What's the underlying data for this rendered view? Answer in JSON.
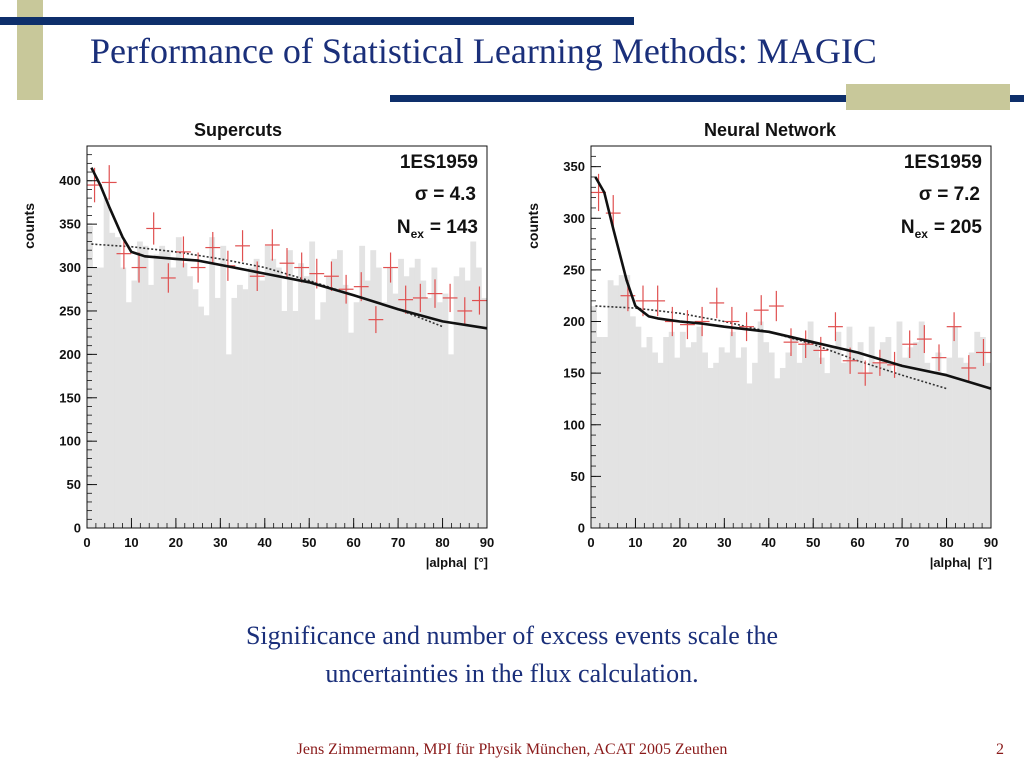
{
  "slide": {
    "title": "Performance of Statistical Learning Methods: MAGIC",
    "caption_line1": "Significance and number of excess events scale the",
    "caption_line2": "uncertainties in the flux calculation.",
    "footer": "Jens Zimmermann, MPI für Physik München, ACAT 2005 Zeuthen",
    "page_number": "2"
  },
  "colors": {
    "title": "#1a2f7a",
    "bar_navy": "#0e2f6b",
    "bar_olive": "#c8c89a",
    "histogram_fill": "#e3e3e3",
    "on_points": "#e05050",
    "fit_line": "#111111",
    "footer": "#8a1a1a"
  },
  "chart_data": [
    {
      "type": "bar",
      "title": "Supercuts",
      "source": "1ES1959",
      "sigma_text": "σ = 4.3",
      "nex_label": "N",
      "nex_sub": "ex",
      "nex_value": "= 143",
      "xlabel": "|alpha|  [°]",
      "ylabel": "counts",
      "xlim": [
        0,
        90
      ],
      "ylim": [
        0,
        440
      ],
      "xticks": [
        "0",
        "10",
        "20",
        "30",
        "40",
        "50",
        "60",
        "70",
        "80",
        "90"
      ],
      "yticks": [
        "0",
        "50",
        "100",
        "150",
        "200",
        "250",
        "300",
        "350",
        "400"
      ],
      "bin_width": 3.33,
      "off_histogram": [
        348,
        300,
        300,
        380,
        340,
        335,
        300,
        260,
        285,
        330,
        325,
        280,
        315,
        325,
        320,
        300,
        335,
        305,
        290,
        275,
        255,
        245,
        335,
        265,
        325,
        200,
        265,
        280,
        275,
        300,
        310,
        285,
        325,
        310,
        300,
        250,
        320,
        250,
        305,
        290,
        330,
        240,
        260,
        290,
        310,
        320,
        280,
        225,
        260,
        325,
        285,
        320,
        300,
        260,
        300,
        270,
        310,
        290,
        300,
        310,
        285,
        265,
        300,
        260,
        270,
        200,
        290,
        300,
        285,
        330,
        300,
        265
      ],
      "on_points": {
        "x": [
          1.7,
          5,
          8.3,
          11.7,
          15,
          18.3,
          21.7,
          25,
          28.3,
          31.7,
          35,
          38.3,
          41.7,
          45,
          48.3,
          51.7,
          55,
          58.3,
          61.7,
          65,
          68.3,
          71.7,
          75,
          78.3,
          81.7,
          85,
          88.3
        ],
        "y": [
          395,
          398,
          316,
          300,
          345,
          288,
          318,
          300,
          323,
          302,
          325,
          290,
          326,
          305,
          300,
          293,
          290,
          275,
          278,
          240,
          300,
          263,
          265,
          270,
          265,
          250,
          262
        ]
      },
      "fit_solid": {
        "x": [
          1,
          3,
          5,
          8,
          10,
          13,
          15,
          20,
          25,
          30,
          40,
          50,
          60,
          70,
          80,
          90
        ],
        "y": [
          415,
          395,
          370,
          335,
          318,
          313,
          312,
          310,
          308,
          303,
          293,
          283,
          268,
          252,
          238,
          230
        ]
      },
      "fit_dashed": {
        "x": [
          1,
          10,
          20,
          30,
          40,
          50,
          60,
          70,
          80
        ],
        "y": [
          327,
          324,
          318,
          310,
          300,
          285,
          268,
          252,
          232
        ]
      }
    },
    {
      "type": "bar",
      "title": "Neural Network",
      "source": "1ES1959",
      "sigma_text": "σ = 7.2",
      "nex_label": "N",
      "nex_sub": "ex",
      "nex_value": "= 205",
      "xlabel": "|alpha|  [°]",
      "ylabel": "counts",
      "xlim": [
        0,
        90
      ],
      "ylim": [
        0,
        370
      ],
      "xticks": [
        "0",
        "10",
        "20",
        "30",
        "40",
        "50",
        "60",
        "70",
        "80",
        "90"
      ],
      "yticks": [
        "0",
        "50",
        "100",
        "150",
        "200",
        "250",
        "300",
        "350"
      ],
      "bin_width": 3.33,
      "off_histogram": [
        215,
        185,
        185,
        240,
        235,
        245,
        245,
        205,
        195,
        175,
        185,
        170,
        160,
        185,
        190,
        165,
        190,
        175,
        180,
        195,
        170,
        155,
        160,
        175,
        170,
        190,
        165,
        175,
        140,
        160,
        200,
        180,
        170,
        145,
        155,
        170,
        185,
        160,
        180,
        200,
        180,
        165,
        150,
        175,
        190,
        160,
        195,
        170,
        180,
        150,
        195,
        160,
        180,
        185,
        150,
        200,
        165,
        175,
        180,
        200,
        160,
        150,
        170,
        150,
        165,
        195,
        165,
        160,
        170,
        190,
        185,
        160
      ],
      "on_points": {
        "x": [
          1.7,
          5,
          8.3,
          11.7,
          15,
          18.3,
          21.7,
          25,
          28.3,
          31.7,
          35,
          38.3,
          41.7,
          45,
          48.3,
          51.7,
          55,
          58.3,
          61.7,
          65,
          68.3,
          71.7,
          75,
          78.3,
          81.7,
          85,
          88.3
        ],
        "y": [
          325,
          305,
          225,
          220,
          220,
          200,
          197,
          200,
          218,
          200,
          195,
          211,
          215,
          180,
          178,
          172,
          195,
          162,
          150,
          160,
          158,
          178,
          183,
          165,
          195,
          155,
          170
        ]
      },
      "fit_solid": {
        "x": [
          1,
          3,
          5,
          8,
          10,
          13,
          15,
          20,
          25,
          30,
          40,
          50,
          60,
          70,
          80,
          90
        ],
        "y": [
          340,
          325,
          290,
          240,
          215,
          205,
          203,
          200,
          198,
          195,
          190,
          180,
          170,
          157,
          148,
          135
        ]
      },
      "fit_dashed": {
        "x": [
          1,
          10,
          20,
          30,
          40,
          50,
          60,
          70,
          80
        ],
        "y": [
          215,
          213,
          208,
          200,
          190,
          178,
          162,
          148,
          135
        ]
      }
    }
  ]
}
